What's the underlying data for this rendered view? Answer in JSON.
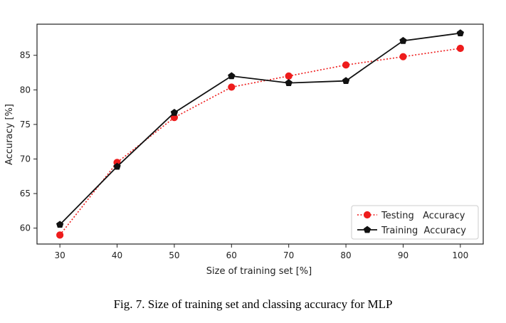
{
  "caption": "Fig. 7. Size of training set and classing accuracy for MLP",
  "chart_data": {
    "type": "line",
    "xlabel": "Size of training set [%]",
    "ylabel": "Accuracy [%]",
    "x": [
      30,
      40,
      50,
      60,
      70,
      80,
      90,
      100
    ],
    "xticks": [
      30,
      40,
      50,
      60,
      70,
      80,
      90,
      100
    ],
    "yticks": [
      60,
      65,
      70,
      75,
      80,
      85
    ],
    "xlim": [
      26,
      104
    ],
    "ylim": [
      57.7,
      89.5
    ],
    "legend_position": "lower-right",
    "grid": false,
    "series": [
      {
        "name": "Testing   Accuracy",
        "color": "#ee1c1c",
        "style": "dotted",
        "marker": "circle",
        "values": [
          59.0,
          69.5,
          76.0,
          80.4,
          82.0,
          83.6,
          84.8,
          86.0
        ]
      },
      {
        "name": "Training  Accuracy",
        "color": "#111111",
        "style": "solid",
        "marker": "pentagon",
        "values": [
          60.5,
          68.9,
          76.7,
          82.0,
          81.0,
          81.3,
          87.1,
          88.2
        ]
      }
    ]
  }
}
